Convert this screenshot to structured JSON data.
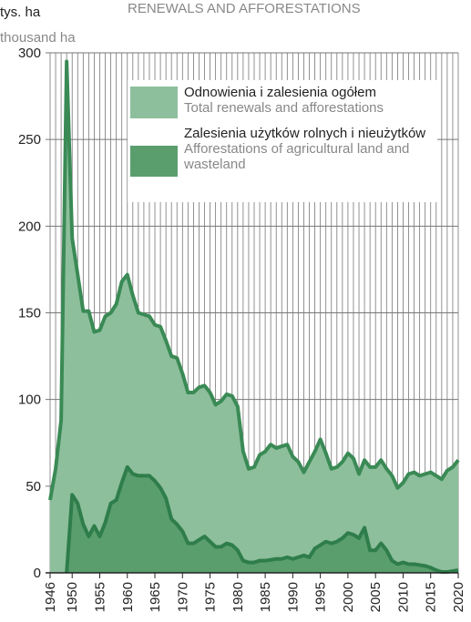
{
  "chart_data": {
    "type": "area",
    "title": "RENEWALS AND AFFORESTATIONS",
    "y_label": "tys. ha",
    "y_label_en": "thousand ha",
    "x": [
      1946,
      1947,
      1948,
      1949,
      1950,
      1951,
      1952,
      1953,
      1954,
      1955,
      1956,
      1957,
      1958,
      1959,
      1960,
      1961,
      1962,
      1963,
      1964,
      1965,
      1966,
      1967,
      1968,
      1969,
      1970,
      1971,
      1972,
      1973,
      1974,
      1975,
      1976,
      1977,
      1978,
      1979,
      1980,
      1981,
      1982,
      1983,
      1984,
      1985,
      1986,
      1987,
      1988,
      1989,
      1990,
      1991,
      1992,
      1993,
      1994,
      1995,
      1996,
      1997,
      1998,
      1999,
      2000,
      2001,
      2002,
      2003,
      2004,
      2005,
      2006,
      2007,
      2008,
      2009,
      2010,
      2011,
      2012,
      2013,
      2014,
      2015,
      2016,
      2017,
      2018,
      2019,
      2020
    ],
    "series": [
      {
        "name": "Odnowienia i zalesienia ogółem",
        "name_en": "Total renewals and afforestations",
        "color": "#8dbf9c",
        "line_color": "#3a8a55",
        "values": [
          42,
          60,
          88,
          295,
          193,
          172,
          151,
          151,
          139,
          140,
          148,
          150,
          155,
          168,
          172,
          160,
          150,
          149,
          148,
          143,
          142,
          134,
          125,
          124,
          115,
          104,
          104,
          107,
          108,
          104,
          97,
          99,
          103,
          102,
          96,
          70,
          60,
          61,
          68,
          70,
          74,
          72,
          73,
          74,
          67,
          64,
          58,
          64,
          70,
          77,
          69,
          60,
          61,
          64,
          69,
          66,
          57,
          65,
          61,
          61,
          65,
          60,
          56,
          49,
          52,
          57,
          58,
          56,
          57,
          58,
          56,
          54,
          59,
          61,
          65
        ]
      },
      {
        "name": "Zalesienia użytków rolnych i nieużytków",
        "name_en": "Afforestations of agricultural land and wasteland",
        "color": "#5a9e6e",
        "line_color": "#2e7d4a",
        "values": [
          null,
          null,
          null,
          0,
          45,
          40,
          28,
          21,
          27,
          21,
          29,
          40,
          42,
          52,
          61,
          57,
          56,
          56,
          56,
          53,
          49,
          43,
          31,
          28,
          24,
          17,
          17,
          19,
          21,
          18,
          15,
          15,
          17,
          16,
          13,
          7,
          6,
          6,
          7,
          7,
          7.5,
          8,
          8,
          9,
          8,
          9,
          10,
          9,
          14,
          16,
          18,
          17,
          18,
          20,
          23,
          22,
          20,
          26,
          13,
          13,
          17,
          13,
          7,
          5,
          6,
          5,
          5,
          4.5,
          4,
          3,
          1.5,
          0.5,
          0.5,
          1,
          1.5
        ]
      }
    ],
    "xlim": [
      1946,
      2020
    ],
    "xticks": [
      1946,
      1950,
      1955,
      1960,
      1965,
      1970,
      1975,
      1980,
      1985,
      1990,
      1995,
      2000,
      2005,
      2010,
      2015,
      2020
    ],
    "ylim": [
      0,
      300
    ],
    "yticks": [
      0,
      50,
      100,
      150,
      200,
      250,
      300
    ],
    "grid": true
  }
}
